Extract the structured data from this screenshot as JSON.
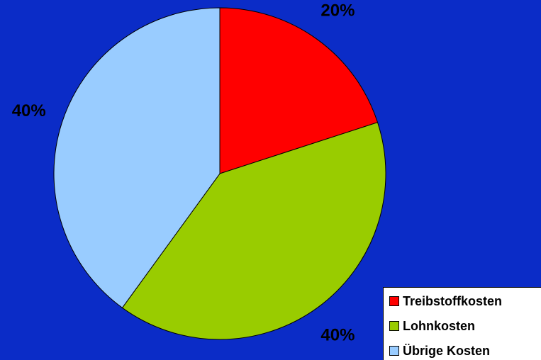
{
  "chart_data": {
    "type": "pie",
    "categories": [
      "Treibstoffkosten",
      "Lohnkosten",
      "Übrige Kosten"
    ],
    "values": [
      20,
      40,
      40
    ],
    "value_labels": [
      "20%",
      "40%",
      "40%"
    ],
    "colors": [
      "#ff0000",
      "#99cc00",
      "#99ccff"
    ],
    "legend": "bottom-right"
  }
}
